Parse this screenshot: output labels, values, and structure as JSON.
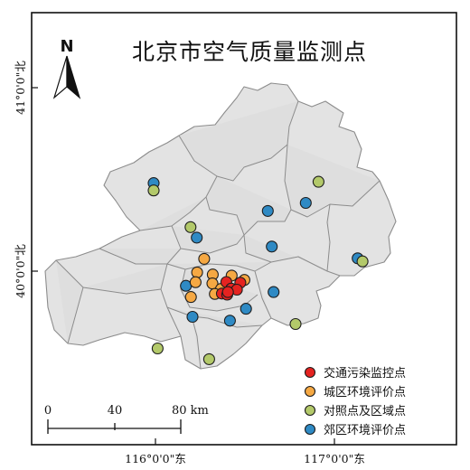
{
  "title": "北京市空气质量监测点",
  "north_label": "N",
  "lat_labels": [
    "41°0'0\"北",
    "40°0'0\"北"
  ],
  "lon_labels": [
    "116°0'0\"东",
    "117°0'0\"东"
  ],
  "scale": {
    "ticks": [
      "0",
      "40",
      "80 km"
    ]
  },
  "legend": [
    {
      "label": "交通污染监控点",
      "color": "#e52320"
    },
    {
      "label": "城区环境评价点",
      "color": "#f5a843"
    },
    {
      "label": "对照点及区域点",
      "color": "#b3c96a"
    },
    {
      "label": "郊区环境评价点",
      "color": "#2f8ac4"
    }
  ],
  "stations": {
    "traffic": [
      [
        116.396,
        39.941
      ],
      [
        116.474,
        39.937
      ],
      [
        116.423,
        39.905
      ],
      [
        116.455,
        39.899
      ],
      [
        116.371,
        39.878
      ],
      [
        116.401,
        39.872
      ],
      [
        116.405,
        39.886
      ]
    ],
    "urban": [
      [
        116.272,
        40.067
      ],
      [
        116.233,
        39.993
      ],
      [
        116.32,
        39.982
      ],
      [
        116.426,
        39.976
      ],
      [
        116.497,
        39.952
      ],
      [
        116.224,
        39.94
      ],
      [
        116.318,
        39.933
      ],
      [
        116.366,
        39.903
      ],
      [
        116.198,
        39.859
      ],
      [
        116.332,
        39.876
      ]
    ],
    "control": [
      [
        116.196,
        40.24
      ],
      [
        115.99,
        40.44
      ],
      [
        116.911,
        40.487
      ],
      [
        117.157,
        40.053
      ],
      [
        116.783,
        39.712
      ],
      [
        116.012,
        39.579
      ],
      [
        116.3,
        39.52
      ]
    ],
    "suburban": [
      [
        115.99,
        40.48
      ],
      [
        116.231,
        40.183
      ],
      [
        116.628,
        40.328
      ],
      [
        116.84,
        40.372
      ],
      [
        116.65,
        40.134
      ],
      [
        117.13,
        40.07
      ],
      [
        116.17,
        39.92
      ],
      [
        116.207,
        39.751
      ],
      [
        116.506,
        39.795
      ],
      [
        116.66,
        39.886
      ],
      [
        116.416,
        39.73
      ]
    ]
  }
}
